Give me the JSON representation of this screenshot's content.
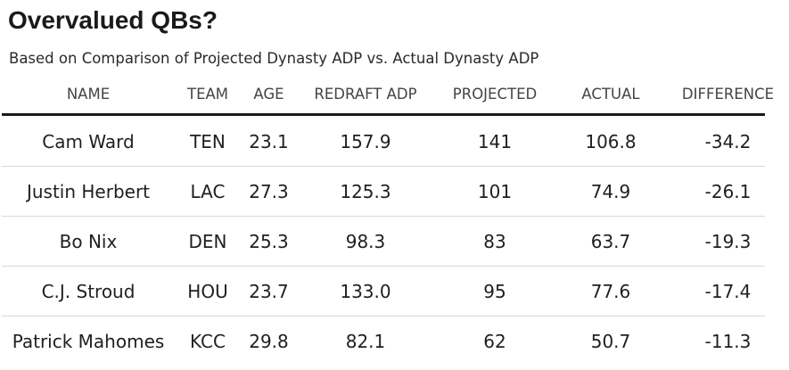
{
  "title": "Overvalued QBs?",
  "subtitle": "Based on Comparison of Projected Dynasty ADP vs. Actual Dynasty ADP",
  "columns": [
    "NAME",
    "TEAM",
    "AGE",
    "REDRAFT ADP",
    "PROJECTED",
    "ACTUAL",
    "DIFFERENCE"
  ],
  "rows": [
    [
      "Cam Ward",
      "TEN",
      "23.1",
      "157.9",
      "141",
      "106.8",
      "-34.2"
    ],
    [
      "Justin Herbert",
      "LAC",
      "27.3",
      "125.3",
      "101",
      "74.9",
      "-26.1"
    ],
    [
      "Bo Nix",
      "DEN",
      "25.3",
      "98.3",
      "83",
      "63.7",
      "-19.3"
    ],
    [
      "C.J. Stroud",
      "HOU",
      "23.7",
      "133.0",
      "95",
      "77.6",
      "-17.4"
    ],
    [
      "Patrick Mahomes",
      "KCC",
      "29.8",
      "82.1",
      "62",
      "50.7",
      "-11.3"
    ]
  ],
  "chart_data": {
    "type": "table",
    "title": "Overvalued QBs?",
    "subtitle": "Based on Comparison of Projected Dynasty ADP vs. Actual Dynasty ADP",
    "columns": [
      "NAME",
      "TEAM",
      "AGE",
      "REDRAFT ADP",
      "PROJECTED",
      "ACTUAL",
      "DIFFERENCE"
    ],
    "rows": [
      {
        "name": "Cam Ward",
        "team": "TEN",
        "age": 23.1,
        "redraft_adp": 157.9,
        "projected": 141,
        "actual": 106.8,
        "difference": -34.2
      },
      {
        "name": "Justin Herbert",
        "team": "LAC",
        "age": 27.3,
        "redraft_adp": 125.3,
        "projected": 101,
        "actual": 74.9,
        "difference": -26.1
      },
      {
        "name": "Bo Nix",
        "team": "DEN",
        "age": 25.3,
        "redraft_adp": 98.3,
        "projected": 83,
        "actual": 63.7,
        "difference": -19.3
      },
      {
        "name": "C.J. Stroud",
        "team": "HOU",
        "age": 23.7,
        "redraft_adp": 133.0,
        "projected": 95,
        "actual": 77.6,
        "difference": -17.4
      },
      {
        "name": "Patrick Mahomes",
        "team": "KCC",
        "age": 29.8,
        "redraft_adp": 82.1,
        "projected": 62,
        "actual": 50.7,
        "difference": -11.3
      }
    ]
  }
}
